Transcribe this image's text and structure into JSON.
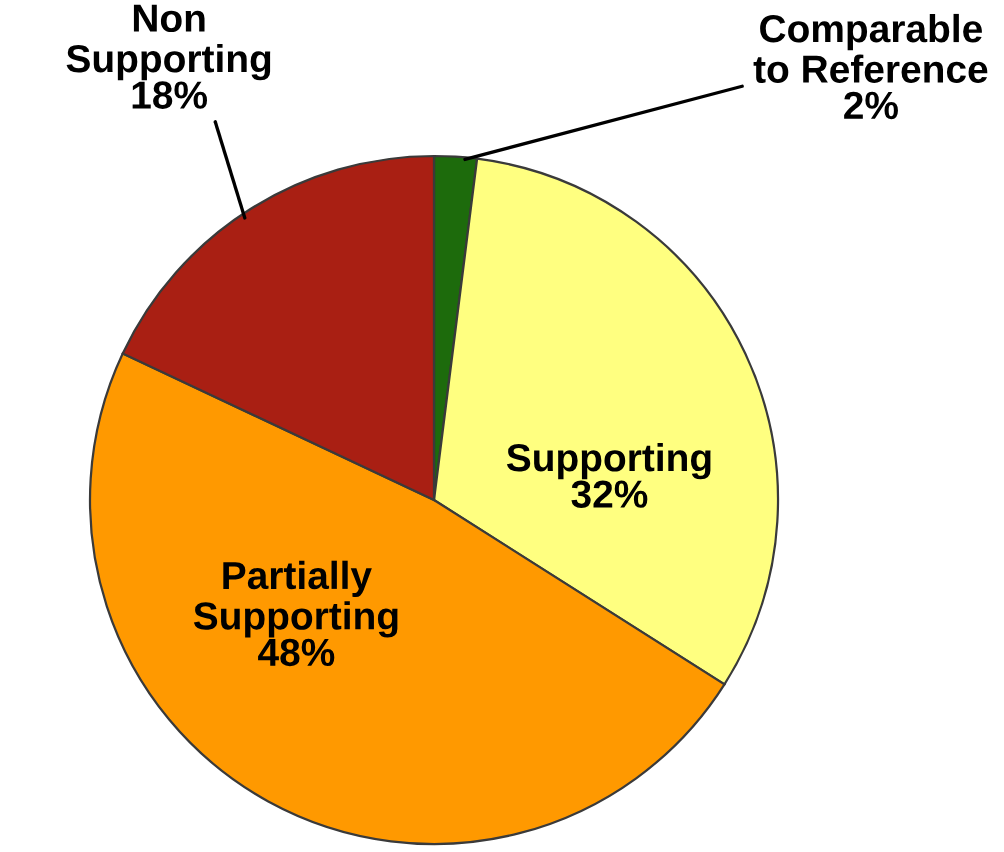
{
  "chart_data": {
    "type": "pie",
    "categories": [
      "Comparable to Reference",
      "Supporting",
      "Partially Supporting",
      "Non Supporting"
    ],
    "values": [
      2,
      32,
      48,
      18
    ],
    "value_labels": [
      "2%",
      "32%",
      "48%",
      "18%"
    ],
    "colors": [
      "#1d6b0c",
      "#ffff80",
      "#ff9900",
      "#a91f13"
    ]
  }
}
